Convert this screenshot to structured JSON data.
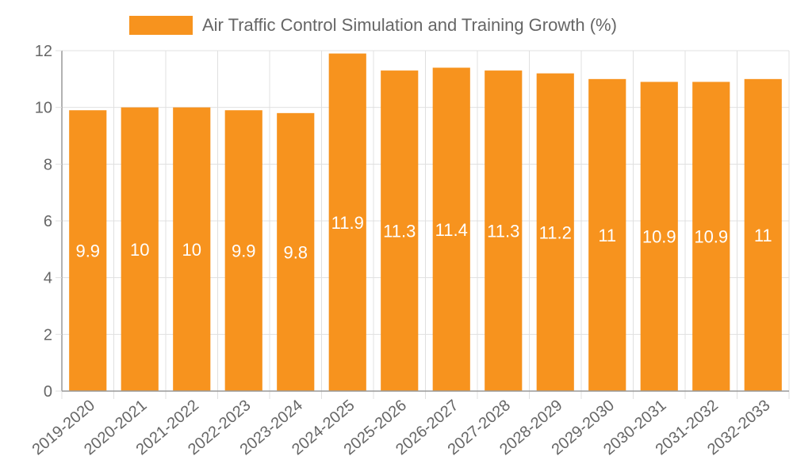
{
  "chart_data": {
    "type": "bar",
    "categories": [
      "2019-2020",
      "2020-2021",
      "2021-2022",
      "2022-2023",
      "2023-2024",
      "2024-2025",
      "2025-2026",
      "2026-2027",
      "2027-2028",
      "2028-2029",
      "2029-2030",
      "2030-2031",
      "2031-2032",
      "2032-2033"
    ],
    "series": [
      {
        "name": "Air Traffic Control Simulation and Training Growth (%)",
        "values": [
          9.9,
          10,
          10,
          9.9,
          9.8,
          11.9,
          11.3,
          11.4,
          11.3,
          11.2,
          11,
          10.9,
          10.9,
          11
        ]
      }
    ],
    "ylim": [
      0,
      12
    ],
    "yticks": [
      0,
      2,
      4,
      6,
      8,
      10,
      12
    ],
    "grid": true,
    "legend_position": "top-center",
    "title": "",
    "xlabel": "",
    "ylabel": ""
  },
  "colors": {
    "bar": "#f7931e",
    "grid": "#e0e0e0",
    "axis": "#999999",
    "text": "#666666",
    "label": "#ffffff"
  }
}
